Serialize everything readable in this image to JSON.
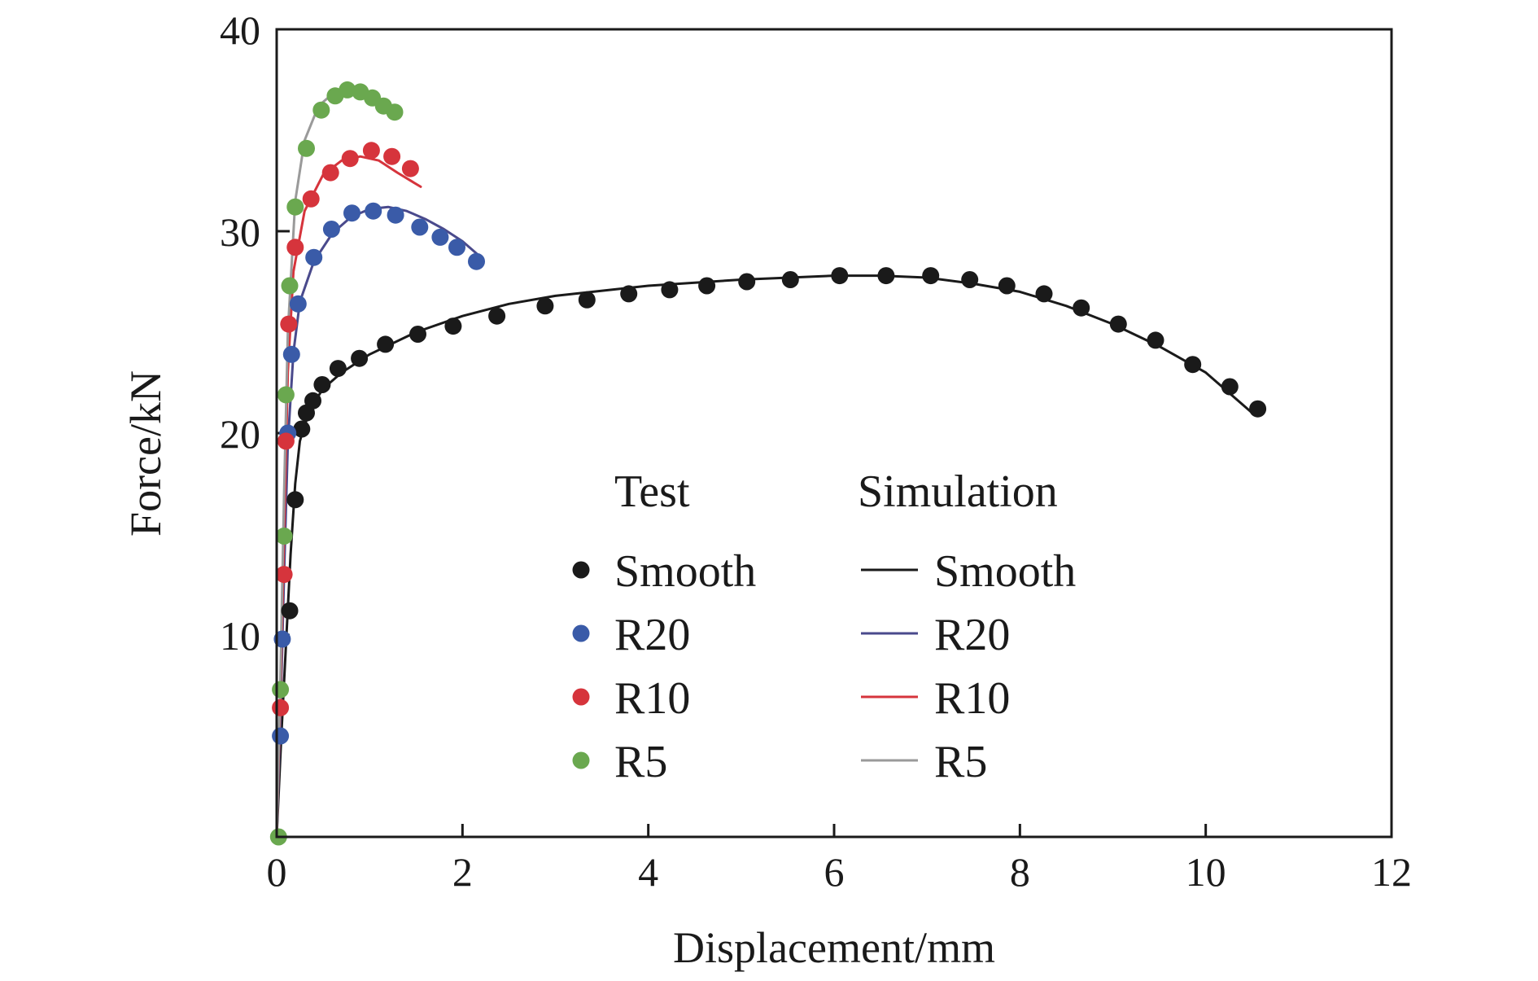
{
  "chart_data": {
    "type": "scatter",
    "title": "",
    "xlabel": "Displacement/mm",
    "ylabel": "Force/kN",
    "xlim": [
      0,
      12
    ],
    "ylim": [
      0,
      40
    ],
    "x_ticks": [
      "0",
      "2",
      "4",
      "6",
      "8",
      "10",
      "12"
    ],
    "y_ticks": [
      "10",
      "20",
      "30",
      "40"
    ],
    "grid": false,
    "legend": {
      "placement": "center",
      "test_header": "Test",
      "sim_header": "Simulation"
    },
    "series": [
      {
        "name": "Smooth",
        "color": "#1a1a1a",
        "test": [
          [
            0.14,
            11.2
          ],
          [
            0.2,
            16.7
          ],
          [
            0.27,
            20.2
          ],
          [
            0.32,
            21.0
          ],
          [
            0.39,
            21.6
          ],
          [
            0.49,
            22.4
          ],
          [
            0.66,
            23.2
          ],
          [
            0.89,
            23.7
          ],
          [
            1.17,
            24.4
          ],
          [
            1.52,
            24.9
          ],
          [
            1.9,
            25.3
          ],
          [
            2.37,
            25.8
          ],
          [
            2.89,
            26.3
          ],
          [
            3.34,
            26.6
          ],
          [
            3.79,
            26.9
          ],
          [
            4.23,
            27.1
          ],
          [
            4.63,
            27.3
          ],
          [
            5.06,
            27.5
          ],
          [
            5.53,
            27.6
          ],
          [
            6.06,
            27.8
          ],
          [
            6.56,
            27.8
          ],
          [
            7.04,
            27.8
          ],
          [
            7.46,
            27.6
          ],
          [
            7.86,
            27.3
          ],
          [
            8.26,
            26.9
          ],
          [
            8.66,
            26.2
          ],
          [
            9.06,
            25.4
          ],
          [
            9.46,
            24.6
          ],
          [
            9.86,
            23.4
          ],
          [
            10.26,
            22.3
          ],
          [
            10.56,
            21.2
          ]
        ],
        "simulation": [
          [
            0,
            0
          ],
          [
            0.05,
            5.0
          ],
          [
            0.1,
            9.5
          ],
          [
            0.15,
            14.0
          ],
          [
            0.2,
            17.5
          ],
          [
            0.25,
            19.6
          ],
          [
            0.3,
            20.4
          ],
          [
            0.4,
            21.5
          ],
          [
            0.5,
            22.2
          ],
          [
            0.7,
            23.0
          ],
          [
            1.0,
            23.9
          ],
          [
            1.5,
            25.0
          ],
          [
            2.0,
            25.8
          ],
          [
            2.5,
            26.4
          ],
          [
            3.0,
            26.8
          ],
          [
            4.0,
            27.3
          ],
          [
            5.0,
            27.6
          ],
          [
            6.0,
            27.8
          ],
          [
            6.5,
            27.8
          ],
          [
            7.0,
            27.7
          ],
          [
            7.5,
            27.4
          ],
          [
            8.0,
            27.0
          ],
          [
            8.5,
            26.3
          ],
          [
            9.0,
            25.4
          ],
          [
            9.5,
            24.3
          ],
          [
            10.0,
            23.0
          ],
          [
            10.5,
            21.0
          ]
        ]
      },
      {
        "name": "R20",
        "color": "#3a5ba8",
        "sim_color": "#4a4a8c",
        "test": [
          [
            0.04,
            5.0
          ],
          [
            0.06,
            9.8
          ],
          [
            0.12,
            20.0
          ],
          [
            0.16,
            23.9
          ],
          [
            0.23,
            26.4
          ],
          [
            0.4,
            28.7
          ],
          [
            0.59,
            30.1
          ],
          [
            0.81,
            30.9
          ],
          [
            1.04,
            31.0
          ],
          [
            1.28,
            30.8
          ],
          [
            1.54,
            30.2
          ],
          [
            1.76,
            29.7
          ],
          [
            1.94,
            29.2
          ],
          [
            2.15,
            28.5
          ]
        ],
        "simulation": [
          [
            0,
            0
          ],
          [
            0.04,
            6.0
          ],
          [
            0.08,
            13.0
          ],
          [
            0.12,
            19.5
          ],
          [
            0.18,
            24.0
          ],
          [
            0.25,
            26.5
          ],
          [
            0.4,
            28.5
          ],
          [
            0.6,
            29.9
          ],
          [
            0.8,
            30.7
          ],
          [
            1.0,
            31.1
          ],
          [
            1.2,
            31.2
          ],
          [
            1.4,
            31.0
          ],
          [
            1.6,
            30.6
          ],
          [
            1.8,
            30.1
          ],
          [
            2.0,
            29.5
          ],
          [
            2.2,
            28.7
          ]
        ]
      },
      {
        "name": "R10",
        "color": "#d6343c",
        "test": [
          [
            0.04,
            6.4
          ],
          [
            0.08,
            13.0
          ],
          [
            0.1,
            19.6
          ],
          [
            0.13,
            25.4
          ],
          [
            0.2,
            29.2
          ],
          [
            0.37,
            31.6
          ],
          [
            0.58,
            32.9
          ],
          [
            0.79,
            33.6
          ],
          [
            1.02,
            34.0
          ],
          [
            1.24,
            33.7
          ],
          [
            1.44,
            33.1
          ]
        ],
        "simulation": [
          [
            0,
            0
          ],
          [
            0.04,
            7.0
          ],
          [
            0.08,
            15.0
          ],
          [
            0.12,
            23.0
          ],
          [
            0.18,
            28.0
          ],
          [
            0.3,
            31.0
          ],
          [
            0.5,
            32.8
          ],
          [
            0.7,
            33.5
          ],
          [
            0.9,
            33.7
          ],
          [
            1.1,
            33.5
          ],
          [
            1.3,
            32.9
          ],
          [
            1.55,
            32.2
          ]
        ]
      },
      {
        "name": "R5",
        "color": "#6aa84f",
        "sim_color": "#9a9a9a",
        "test": [
          [
            0.02,
            0.0
          ],
          [
            0.04,
            7.3
          ],
          [
            0.08,
            14.9
          ],
          [
            0.1,
            21.9
          ],
          [
            0.14,
            27.3
          ],
          [
            0.2,
            31.2
          ],
          [
            0.32,
            34.1
          ],
          [
            0.48,
            36.0
          ],
          [
            0.63,
            36.7
          ],
          [
            0.76,
            37.0
          ],
          [
            0.9,
            36.9
          ],
          [
            1.03,
            36.6
          ],
          [
            1.15,
            36.2
          ],
          [
            1.27,
            35.9
          ]
        ],
        "simulation": [
          [
            0,
            0
          ],
          [
            0.04,
            8.0
          ],
          [
            0.08,
            17.0
          ],
          [
            0.12,
            25.0
          ],
          [
            0.2,
            31.5
          ],
          [
            0.3,
            34.5
          ],
          [
            0.45,
            36.2
          ],
          [
            0.6,
            36.8
          ],
          [
            0.75,
            37.0
          ],
          [
            0.9,
            36.9
          ],
          [
            1.05,
            36.5
          ],
          [
            1.2,
            36.1
          ],
          [
            1.3,
            35.8
          ]
        ]
      }
    ]
  }
}
